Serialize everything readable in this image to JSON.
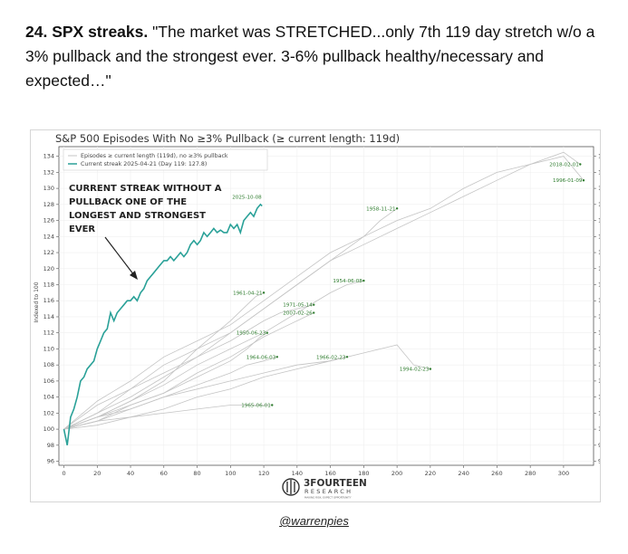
{
  "post": {
    "number_title": "24. SPX streaks.",
    "quote": " \"The market was STRETCHED...only 7th 119 day stretch w/o a 3% pullback and the strongest ever. 3-6% pullback healthy/necessary and expected…\""
  },
  "credit": "@warrenpies",
  "colors": {
    "current": "#2aa198",
    "episodes": "#c4c4c4",
    "episode_labels": "#2f7d2f",
    "annotation": "#222222"
  },
  "chart_data": {
    "type": "line",
    "title": "S&P 500 Episodes With No ≥3% Pullback (≥ current length: 119d)",
    "ylabel": "Indexed to 100",
    "xlabel": "",
    "xlim": [
      -3,
      318
    ],
    "ylim": [
      95.5,
      135.2
    ],
    "x_ticks": [
      0,
      20,
      40,
      60,
      80,
      100,
      120,
      140,
      160,
      180,
      200,
      220,
      240,
      260,
      280,
      300
    ],
    "y_ticks": [
      96,
      98,
      100,
      102,
      104,
      106,
      108,
      110,
      112,
      114,
      116,
      118,
      120,
      122,
      124,
      126,
      128,
      130,
      132,
      134
    ],
    "legend": {
      "placement": "top-left",
      "entries": [
        "Episodes ≥ current length (119d), no ≥3% pullback",
        "Current streak 2025-04-21 (Day 119: 127.8)"
      ]
    },
    "annotation": [
      "CURRENT STREAK WITHOUT A",
      "PULLBACK ONE OF THE",
      "LONGEST AND STRONGEST",
      "EVER"
    ],
    "logo": {
      "name": "3FOURTEEN",
      "sub": "RESEARCH",
      "tagline": "MAKING RISK. EXPECT OPPORTUNITY"
    },
    "series": [
      {
        "name": "Current streak 2025-04-21 (Day 119: 127.8)",
        "highlight": true,
        "points": [
          [
            0,
            100
          ],
          [
            2,
            98
          ],
          [
            4,
            101.5
          ],
          [
            6,
            102.5
          ],
          [
            8,
            104
          ],
          [
            10,
            106
          ],
          [
            12,
            106.5
          ],
          [
            14,
            107.5
          ],
          [
            16,
            108
          ],
          [
            18,
            108.5
          ],
          [
            20,
            110
          ],
          [
            22,
            111
          ],
          [
            24,
            112
          ],
          [
            26,
            112.5
          ],
          [
            28,
            114.5
          ],
          [
            30,
            113.5
          ],
          [
            32,
            114.5
          ],
          [
            34,
            115
          ],
          [
            36,
            115.5
          ],
          [
            38,
            116
          ],
          [
            40,
            116
          ],
          [
            42,
            116.5
          ],
          [
            44,
            116
          ],
          [
            46,
            117
          ],
          [
            48,
            117.5
          ],
          [
            50,
            118.5
          ],
          [
            52,
            119
          ],
          [
            54,
            119.5
          ],
          [
            56,
            120
          ],
          [
            58,
            120.5
          ],
          [
            60,
            121
          ],
          [
            62,
            121
          ],
          [
            64,
            121.5
          ],
          [
            66,
            121
          ],
          [
            68,
            121.5
          ],
          [
            70,
            122
          ],
          [
            72,
            121.5
          ],
          [
            74,
            122
          ],
          [
            76,
            123
          ],
          [
            78,
            123.5
          ],
          [
            80,
            123
          ],
          [
            82,
            123.5
          ],
          [
            84,
            124.5
          ],
          [
            86,
            124
          ],
          [
            88,
            124.5
          ],
          [
            90,
            125
          ],
          [
            92,
            124.5
          ],
          [
            94,
            124.8
          ],
          [
            96,
            124.5
          ],
          [
            98,
            124.5
          ],
          [
            100,
            125.5
          ],
          [
            102,
            125
          ],
          [
            104,
            125.5
          ],
          [
            106,
            124.5
          ],
          [
            108,
            126
          ],
          [
            110,
            126.5
          ],
          [
            112,
            127
          ],
          [
            114,
            126.5
          ],
          [
            116,
            127.5
          ],
          [
            118,
            128
          ],
          [
            119,
            127.8
          ]
        ]
      },
      {
        "name": "1996-01-09",
        "points": [
          [
            0,
            100
          ],
          [
            20,
            103
          ],
          [
            40,
            105
          ],
          [
            60,
            108
          ],
          [
            80,
            110
          ],
          [
            100,
            112
          ],
          [
            120,
            115
          ],
          [
            140,
            118
          ],
          [
            160,
            121
          ],
          [
            180,
            123
          ],
          [
            200,
            125
          ],
          [
            220,
            127
          ],
          [
            240,
            129
          ],
          [
            260,
            131
          ],
          [
            280,
            133
          ],
          [
            300,
            134
          ],
          [
            312,
            131
          ]
        ]
      },
      {
        "name": "2018-02-01",
        "points": [
          [
            0,
            100
          ],
          [
            20,
            103.5
          ],
          [
            40,
            106
          ],
          [
            60,
            109
          ],
          [
            80,
            111
          ],
          [
            100,
            113
          ],
          [
            120,
            116
          ],
          [
            140,
            119
          ],
          [
            160,
            122
          ],
          [
            180,
            124
          ],
          [
            200,
            126
          ],
          [
            220,
            127.5
          ],
          [
            240,
            130
          ],
          [
            260,
            132
          ],
          [
            280,
            133
          ],
          [
            300,
            134.5
          ],
          [
            310,
            133
          ]
        ]
      },
      {
        "name": "1958-11-21",
        "points": [
          [
            0,
            100
          ],
          [
            20,
            102
          ],
          [
            40,
            105
          ],
          [
            60,
            107
          ],
          [
            80,
            109
          ],
          [
            100,
            112
          ],
          [
            120,
            115
          ],
          [
            140,
            118
          ],
          [
            160,
            121
          ],
          [
            180,
            124
          ],
          [
            190,
            126
          ],
          [
            200,
            127.5
          ]
        ]
      },
      {
        "name": "1961-04-21",
        "points": [
          [
            0,
            100
          ],
          [
            20,
            101.5
          ],
          [
            40,
            103.5
          ],
          [
            60,
            106
          ],
          [
            80,
            110
          ],
          [
            100,
            113.5
          ],
          [
            110,
            115.5
          ],
          [
            115,
            116.5
          ],
          [
            120,
            117
          ]
        ]
      },
      {
        "name": "1971-05-14",
        "points": [
          [
            0,
            100
          ],
          [
            20,
            102
          ],
          [
            40,
            104
          ],
          [
            60,
            106.5
          ],
          [
            80,
            109
          ],
          [
            100,
            111
          ],
          [
            120,
            113.5
          ],
          [
            130,
            114.5
          ],
          [
            140,
            115
          ],
          [
            150,
            115.5
          ]
        ]
      },
      {
        "name": "1954-06-08",
        "points": [
          [
            0,
            100
          ],
          [
            20,
            101.5
          ],
          [
            40,
            103.5
          ],
          [
            60,
            105.5
          ],
          [
            80,
            108
          ],
          [
            100,
            110
          ],
          [
            120,
            112
          ],
          [
            140,
            114.5
          ],
          [
            160,
            117
          ],
          [
            170,
            118
          ],
          [
            180,
            118.5
          ]
        ]
      },
      {
        "name": "2007-02-26",
        "points": [
          [
            0,
            100
          ],
          [
            20,
            101
          ],
          [
            40,
            103
          ],
          [
            60,
            104.5
          ],
          [
            80,
            107
          ],
          [
            100,
            109
          ],
          [
            120,
            111.5
          ],
          [
            135,
            113
          ],
          [
            145,
            114
          ],
          [
            150,
            114.5
          ]
        ]
      },
      {
        "name": "1950-06-23",
        "points": [
          [
            0,
            100
          ],
          [
            20,
            101.5
          ],
          [
            40,
            103
          ],
          [
            60,
            104.5
          ],
          [
            80,
            106.5
          ],
          [
            100,
            108.5
          ],
          [
            110,
            110
          ],
          [
            118,
            111.5
          ],
          [
            122,
            112
          ]
        ]
      },
      {
        "name": "1964-06-03",
        "points": [
          [
            0,
            100
          ],
          [
            20,
            101
          ],
          [
            40,
            102.5
          ],
          [
            60,
            104
          ],
          [
            80,
            105.5
          ],
          [
            100,
            107
          ],
          [
            110,
            108
          ],
          [
            120,
            108.5
          ],
          [
            128,
            109
          ]
        ]
      },
      {
        "name": "1966-02-23",
        "points": [
          [
            0,
            100
          ],
          [
            20,
            101.5
          ],
          [
            40,
            102.5
          ],
          [
            60,
            104
          ],
          [
            80,
            105
          ],
          [
            100,
            106
          ],
          [
            120,
            107
          ],
          [
            140,
            108
          ],
          [
            160,
            108.5
          ],
          [
            170,
            109
          ]
        ]
      },
      {
        "name": "1994-02-23",
        "points": [
          [
            0,
            100
          ],
          [
            20,
            100.5
          ],
          [
            40,
            101.5
          ],
          [
            60,
            102.5
          ],
          [
            80,
            104
          ],
          [
            100,
            105
          ],
          [
            120,
            106.5
          ],
          [
            140,
            107.5
          ],
          [
            160,
            108.5
          ],
          [
            180,
            109.5
          ],
          [
            200,
            110.5
          ],
          [
            210,
            108
          ],
          [
            220,
            107.5
          ]
        ]
      },
      {
        "name": "1965-06-01",
        "points": [
          [
            0,
            100
          ],
          [
            20,
            101
          ],
          [
            40,
            101.5
          ],
          [
            60,
            102
          ],
          [
            80,
            102.5
          ],
          [
            100,
            103
          ],
          [
            110,
            103
          ],
          [
            120,
            103
          ],
          [
            125,
            103
          ]
        ]
      }
    ]
  }
}
